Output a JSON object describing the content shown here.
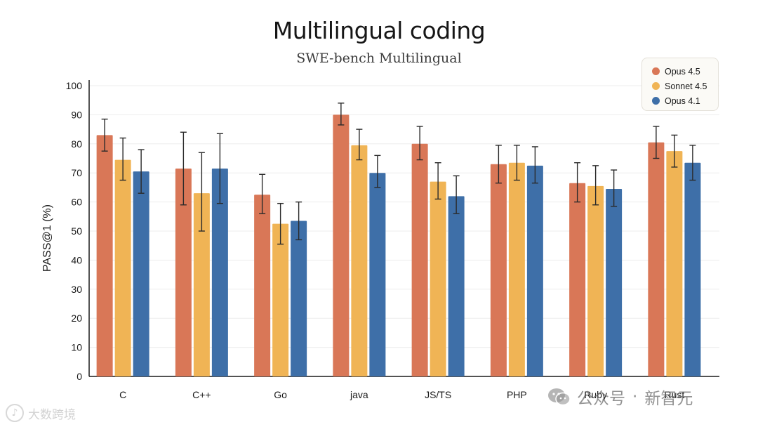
{
  "chart_data": {
    "type": "bar",
    "title": "Multilingual coding",
    "subtitle": "SWE-bench Multilingual",
    "xlabel": "",
    "ylabel": "PASS@1 (%)",
    "ylim": [
      0,
      100
    ],
    "yticks": [
      0,
      10,
      20,
      30,
      40,
      50,
      60,
      70,
      80,
      90,
      100
    ],
    "grid": true,
    "legend_position": "top-right",
    "categories": [
      "C",
      "C++",
      "Go",
      "java",
      "JS/TS",
      "PHP",
      "Ruby",
      "Rust"
    ],
    "series": [
      {
        "name": "Opus 4.5",
        "color": "#d97757",
        "values": [
          83,
          71.5,
          62.5,
          90,
          80,
          73,
          66.5,
          80.5
        ],
        "error_low": [
          77.5,
          59,
          56,
          86.5,
          74.5,
          66.5,
          60,
          75
        ],
        "error_high": [
          88.5,
          84,
          69.5,
          94,
          86,
          79.5,
          73.5,
          86
        ]
      },
      {
        "name": "Sonnet 4.5",
        "color": "#f0b455",
        "values": [
          74.5,
          63,
          52.5,
          79.5,
          67,
          73.5,
          65.5,
          77.5
        ],
        "error_low": [
          67.5,
          50,
          45.5,
          74.5,
          61,
          67.5,
          59,
          72
        ],
        "error_high": [
          82,
          77,
          59.5,
          85,
          73.5,
          79.5,
          72.5,
          83
        ]
      },
      {
        "name": "Opus 4.1",
        "color": "#3e6fa8",
        "values": [
          70.5,
          71.5,
          53.5,
          70,
          62,
          72.5,
          64.5,
          73.5
        ],
        "error_low": [
          63,
          59.5,
          47,
          65,
          56,
          66.5,
          58.5,
          67.5
        ],
        "error_high": [
          78,
          83.5,
          60,
          76,
          69,
          79,
          71,
          79.5
        ]
      }
    ]
  },
  "watermarks": {
    "left": "大数跨境",
    "right_a": "公众号",
    "right_sep": "·",
    "right_b": "新智元",
    "logo_icon": "tiktok-style-logo-icon",
    "wechat_icon": "wechat-icon"
  }
}
